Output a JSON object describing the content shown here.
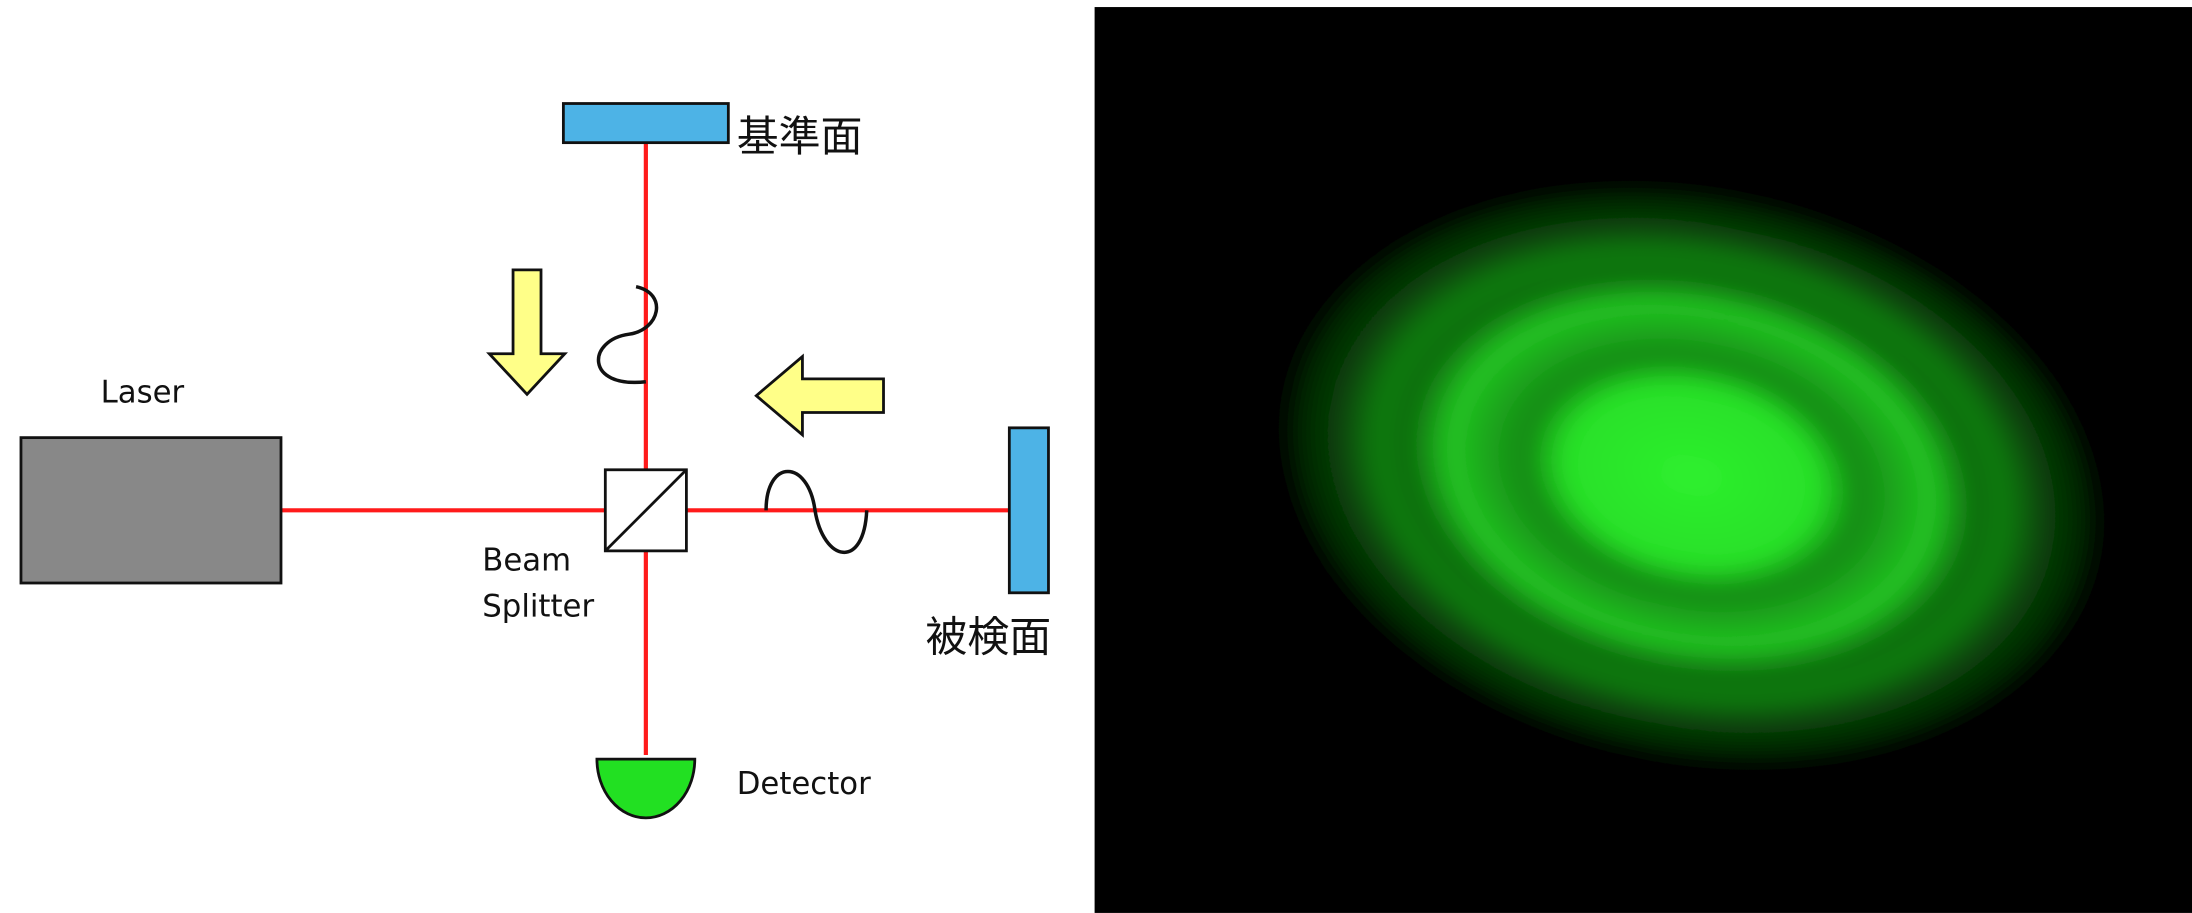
{
  "labels": {
    "reference_surface": "基準面",
    "laser": "Laser",
    "beam_splitter": [
      "Beam",
      "Splitter"
    ],
    "test_surface": "被検面",
    "detector": "Detector"
  }
}
